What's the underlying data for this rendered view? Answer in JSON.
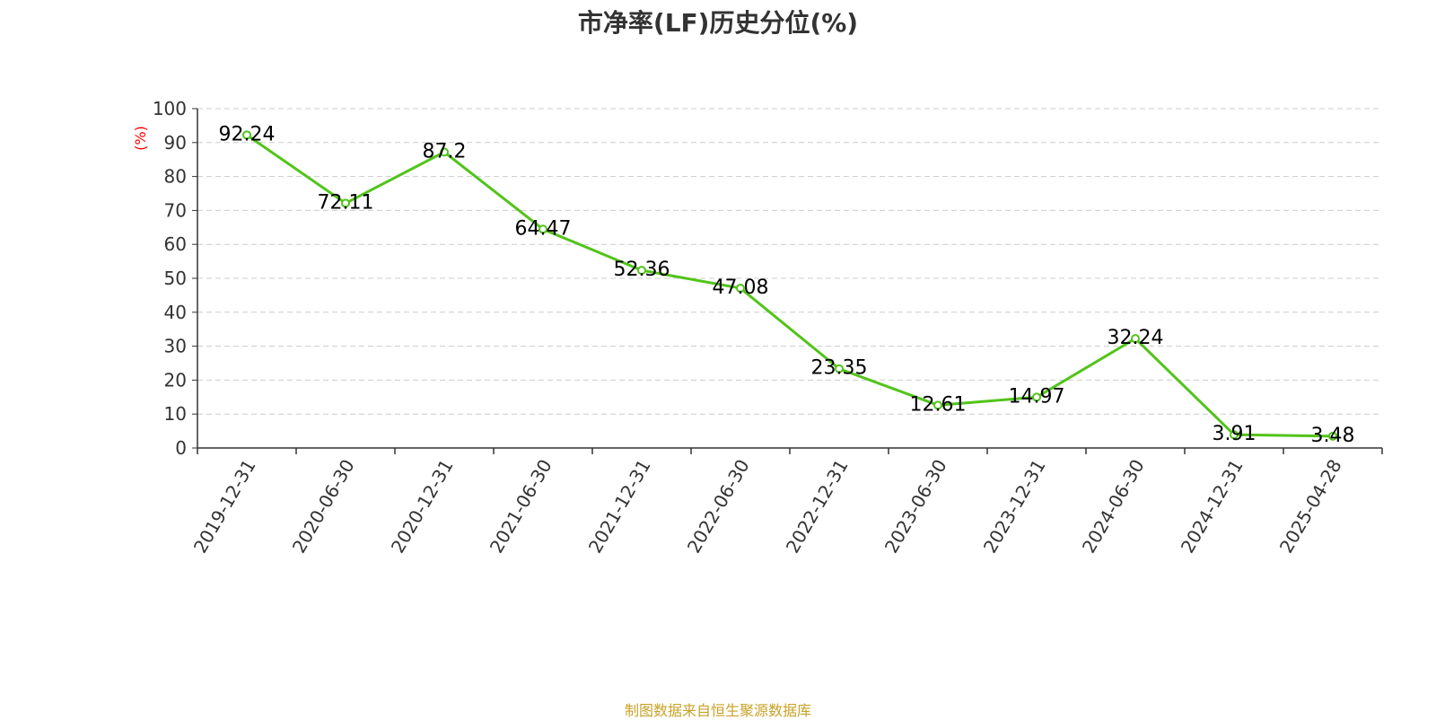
{
  "chart_data": {
    "type": "line",
    "title": "市净率(LF)历史分位(%)",
    "ylabel": "(%)",
    "xlabel": "",
    "categories": [
      "2019-12-31",
      "2020-06-30",
      "2020-12-31",
      "2021-06-30",
      "2021-12-31",
      "2022-06-30",
      "2022-12-31",
      "2023-06-30",
      "2023-12-31",
      "2024-06-30",
      "2024-12-31",
      "2025-04-28"
    ],
    "series": [
      {
        "values": [
          92.24,
          72.11,
          87.2,
          64.47,
          52.36,
          47.08,
          23.35,
          12.61,
          14.97,
          32.24,
          3.91,
          3.48
        ]
      }
    ],
    "data_labels": [
      "92.24",
      "72.11",
      "87.2",
      "64.47",
      "52.36",
      "47.08",
      "23.35",
      "12.61",
      "14.97",
      "32.24",
      "3.91",
      "3.48"
    ],
    "ylim": [
      0,
      100
    ],
    "yticks": [
      0,
      10,
      20,
      30,
      40,
      50,
      60,
      70,
      80,
      90,
      100
    ],
    "ytick_labels": [
      "0",
      "10",
      "20",
      "30",
      "40",
      "50",
      "60",
      "70",
      "80",
      "90",
      "100"
    ],
    "grid": true,
    "grid_style": "dashed",
    "colors": {
      "line": "#52c41a",
      "title": "#333333",
      "ylabel": "#ff0000",
      "source": "#c9a227",
      "grid": "#cccccc",
      "axis": "#333333"
    }
  },
  "footer": {
    "source": "制图数据来自恒生聚源数据库"
  }
}
